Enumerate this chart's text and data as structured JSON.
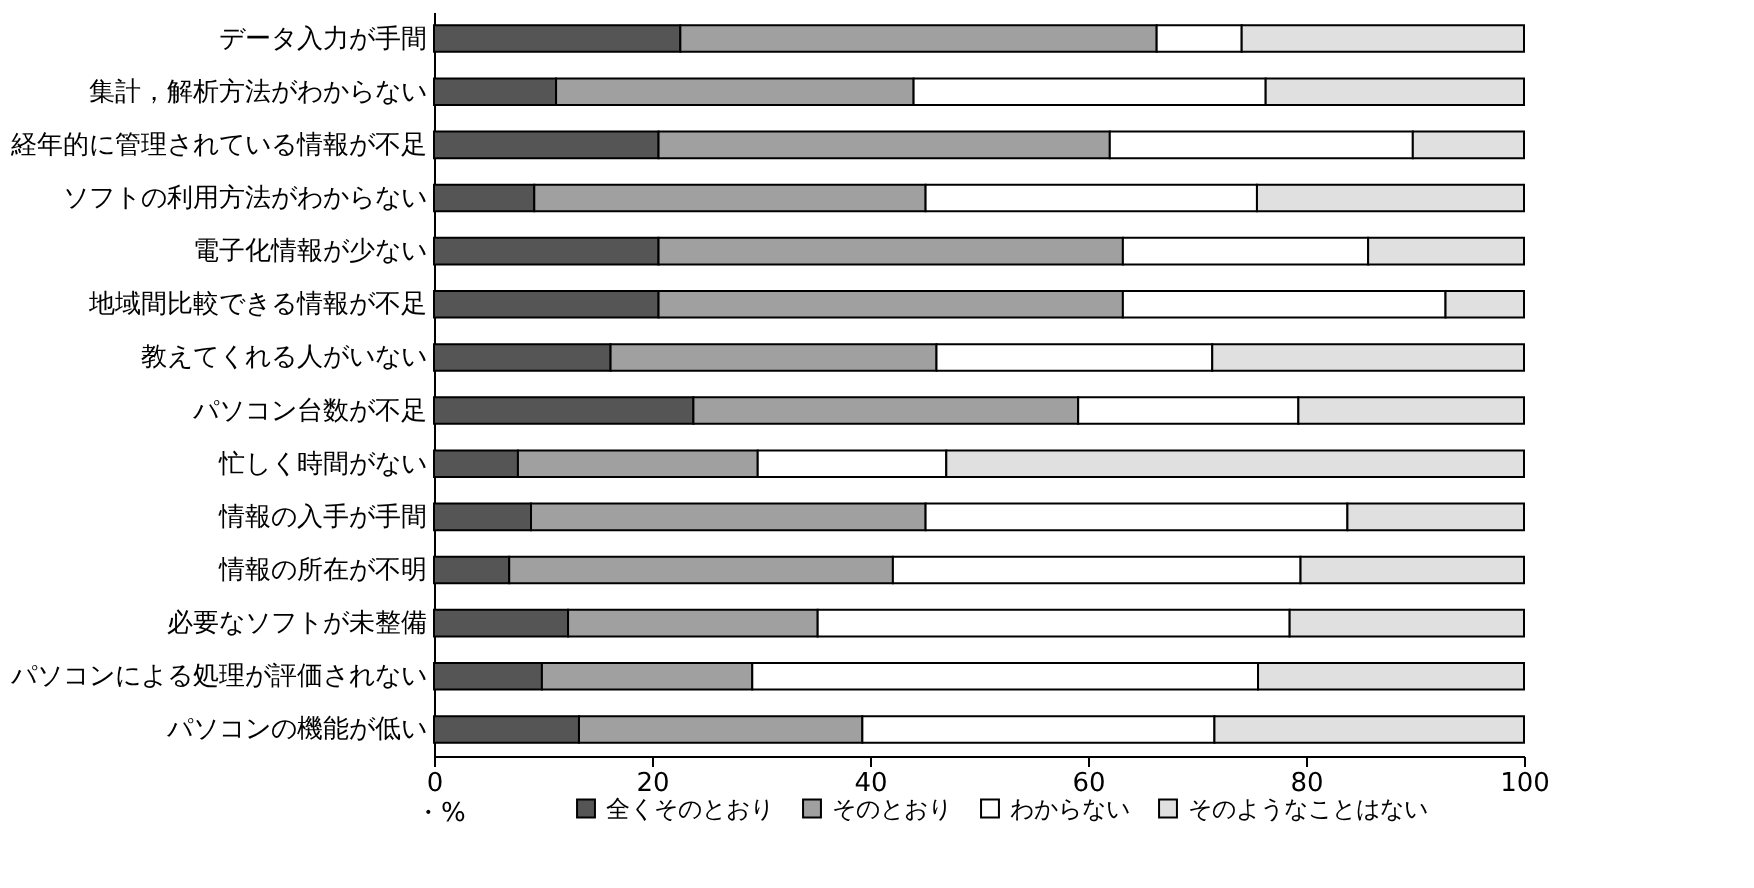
{
  "chart_data": {
    "type": "bar",
    "orientation": "horizontal",
    "stacked": true,
    "xlabel": "・%",
    "legend": "bottom",
    "categories": [
      "データ入力が手間",
      "集計，解析方法がわからない",
      "経年的に管理されている情報が不足",
      "ソフトの利用方法がわからない",
      "電子化情報が少ない",
      "地域間比較できる情報が不足",
      "教えてくれる人がいない",
      "パソコン台数が不足",
      "忙しく時間がない",
      "情報の入手が手間",
      "情報の所在が不明",
      "必要なソフトが未整備",
      "パソコンによる処理が評価されない",
      "パソコンの機能が低い"
    ],
    "series": [
      {
        "name": "全くそのとおり",
        "color": "#555555",
        "values": [
          22.6,
          11.2,
          20.6,
          9.2,
          20.6,
          20.6,
          16.2,
          23.8,
          7.7,
          8.9,
          6.9,
          12.3,
          9.9,
          13.3
        ]
      },
      {
        "name": "そのとおり",
        "color": "#a0a0a0",
        "values": [
          43.7,
          32.8,
          41.4,
          35.9,
          42.6,
          42.6,
          29.9,
          35.3,
          22,
          36.2,
          35.2,
          22.9,
          19.3,
          26
        ]
      },
      {
        "name": "わからない",
        "color": "#ffffff",
        "values": [
          7.8,
          32.3,
          27.8,
          30.4,
          22.5,
          29.6,
          25.3,
          20.2,
          17.3,
          38.7,
          37.4,
          43.3,
          46.4,
          32.3
        ]
      },
      {
        "name": "そのようなことはない",
        "color": "#e0e0e0",
        "values": [
          25.9,
          23.7,
          10.2,
          24.5,
          14.3,
          7.2,
          28.6,
          20.7,
          53,
          16.2,
          20.5,
          21.5,
          24.4,
          28.4
        ]
      }
    ],
    "xlim": [
      0,
      100
    ],
    "xticks": [
      0,
      20,
      40,
      60,
      80,
      100
    ],
    "grid": false
  }
}
